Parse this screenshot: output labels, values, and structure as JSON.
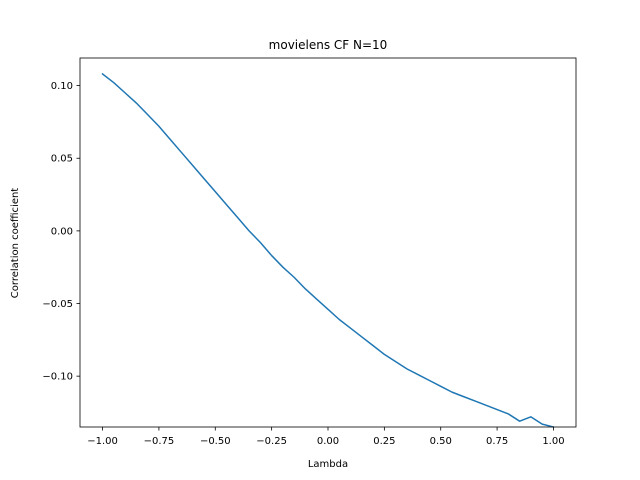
{
  "chart_data": {
    "type": "line",
    "title": "movielens CF N=10",
    "xlabel": "Lambda",
    "ylabel": "Correlation coefficient",
    "xlim": [
      -1.1,
      1.1
    ],
    "ylim": [
      -0.135,
      0.119
    ],
    "xticks": [
      -1.0,
      -0.75,
      -0.5,
      -0.25,
      0.0,
      0.25,
      0.5,
      0.75,
      1.0
    ],
    "xtick_labels": [
      "−1.00",
      "−0.75",
      "−0.50",
      "−0.25",
      "0.00",
      "0.25",
      "0.50",
      "0.75",
      "1.00"
    ],
    "yticks": [
      0.1,
      0.05,
      0.0,
      -0.05,
      -0.1
    ],
    "ytick_labels": [
      "0.10",
      "0.05",
      "0.00",
      "−0.05",
      "−0.10"
    ],
    "grid": false,
    "series": [
      {
        "name": "correlation",
        "color": "#1f77b4",
        "x": [
          -1.0,
          -0.95,
          -0.9,
          -0.85,
          -0.8,
          -0.75,
          -0.7,
          -0.65,
          -0.6,
          -0.55,
          -0.5,
          -0.45,
          -0.4,
          -0.35,
          -0.3,
          -0.25,
          -0.2,
          -0.15,
          -0.1,
          -0.05,
          0.0,
          0.05,
          0.1,
          0.15,
          0.2,
          0.25,
          0.3,
          0.35,
          0.4,
          0.45,
          0.5,
          0.55,
          0.6,
          0.65,
          0.7,
          0.75,
          0.8,
          0.85,
          0.9,
          0.95,
          1.0
        ],
        "y": [
          0.108,
          0.102,
          0.095,
          0.088,
          0.08,
          0.072,
          0.063,
          0.054,
          0.045,
          0.036,
          0.027,
          0.018,
          0.009,
          0.0,
          -0.008,
          -0.017,
          -0.025,
          -0.032,
          -0.04,
          -0.047,
          -0.054,
          -0.061,
          -0.067,
          -0.073,
          -0.079,
          -0.085,
          -0.09,
          -0.095,
          -0.099,
          -0.103,
          -0.107,
          -0.111,
          -0.114,
          -0.117,
          -0.12,
          -0.123,
          -0.126,
          -0.131,
          -0.128,
          -0.133,
          -0.135
        ]
      }
    ]
  }
}
